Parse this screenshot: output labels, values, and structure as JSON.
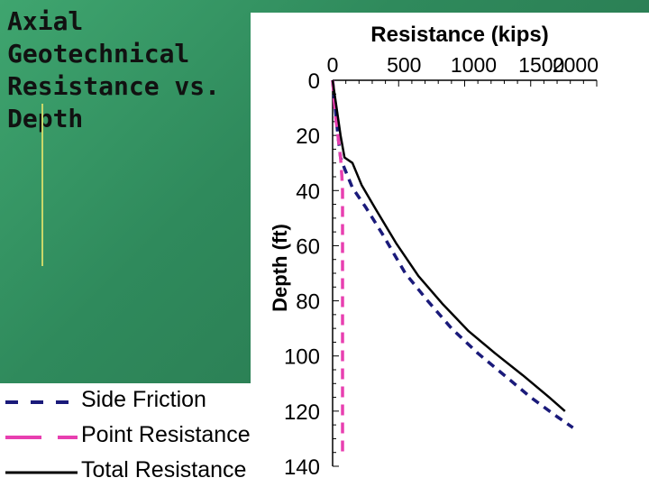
{
  "slide": {
    "title_lines": [
      "Axial",
      "Geotechnical",
      "Resistance vs.",
      "Depth"
    ]
  },
  "chart_data": {
    "type": "line",
    "xlabel": "Resistance (kips)",
    "ylabel": "Depth (ft)",
    "x_ticks": [
      0,
      500,
      1000,
      1500,
      2000
    ],
    "y_ticks": [
      0,
      20,
      40,
      60,
      80,
      100,
      120,
      140
    ],
    "xlim": [
      0,
      2000
    ],
    "ylim": [
      0,
      140
    ],
    "y_inverted": true,
    "grid": false,
    "legend_position": "bottom-left",
    "series": [
      {
        "name": "Side Friction",
        "color": "#1a1a7a",
        "dash": "dashed",
        "points": [
          [
            0,
            0
          ],
          [
            20,
            10
          ],
          [
            40,
            20
          ],
          [
            60,
            28
          ],
          [
            90,
            32
          ],
          [
            150,
            39
          ],
          [
            250,
            46
          ],
          [
            380,
            56
          ],
          [
            550,
            70
          ],
          [
            720,
            80
          ],
          [
            900,
            90
          ],
          [
            1100,
            99
          ],
          [
            1300,
            107
          ],
          [
            1500,
            115
          ],
          [
            1700,
            122
          ],
          [
            1820,
            126
          ]
        ]
      },
      {
        "name": "Point Resistance",
        "color": "#e83fb0",
        "dash": "dashed",
        "points": [
          [
            0,
            0
          ],
          [
            20,
            12
          ],
          [
            40,
            20
          ],
          [
            60,
            28
          ],
          [
            70,
            35
          ],
          [
            75,
            40
          ],
          [
            75,
            100
          ],
          [
            75,
            136
          ]
        ]
      },
      {
        "name": "Total Resistance",
        "color": "#000000",
        "dash": "solid",
        "points": [
          [
            0,
            0
          ],
          [
            30,
            10
          ],
          [
            60,
            20
          ],
          [
            90,
            28
          ],
          [
            150,
            30
          ],
          [
            220,
            38
          ],
          [
            330,
            47
          ],
          [
            480,
            59
          ],
          [
            650,
            71
          ],
          [
            830,
            81
          ],
          [
            1030,
            91
          ],
          [
            1230,
            99
          ],
          [
            1440,
            107
          ],
          [
            1640,
            115
          ],
          [
            1760,
            120
          ]
        ]
      }
    ]
  }
}
